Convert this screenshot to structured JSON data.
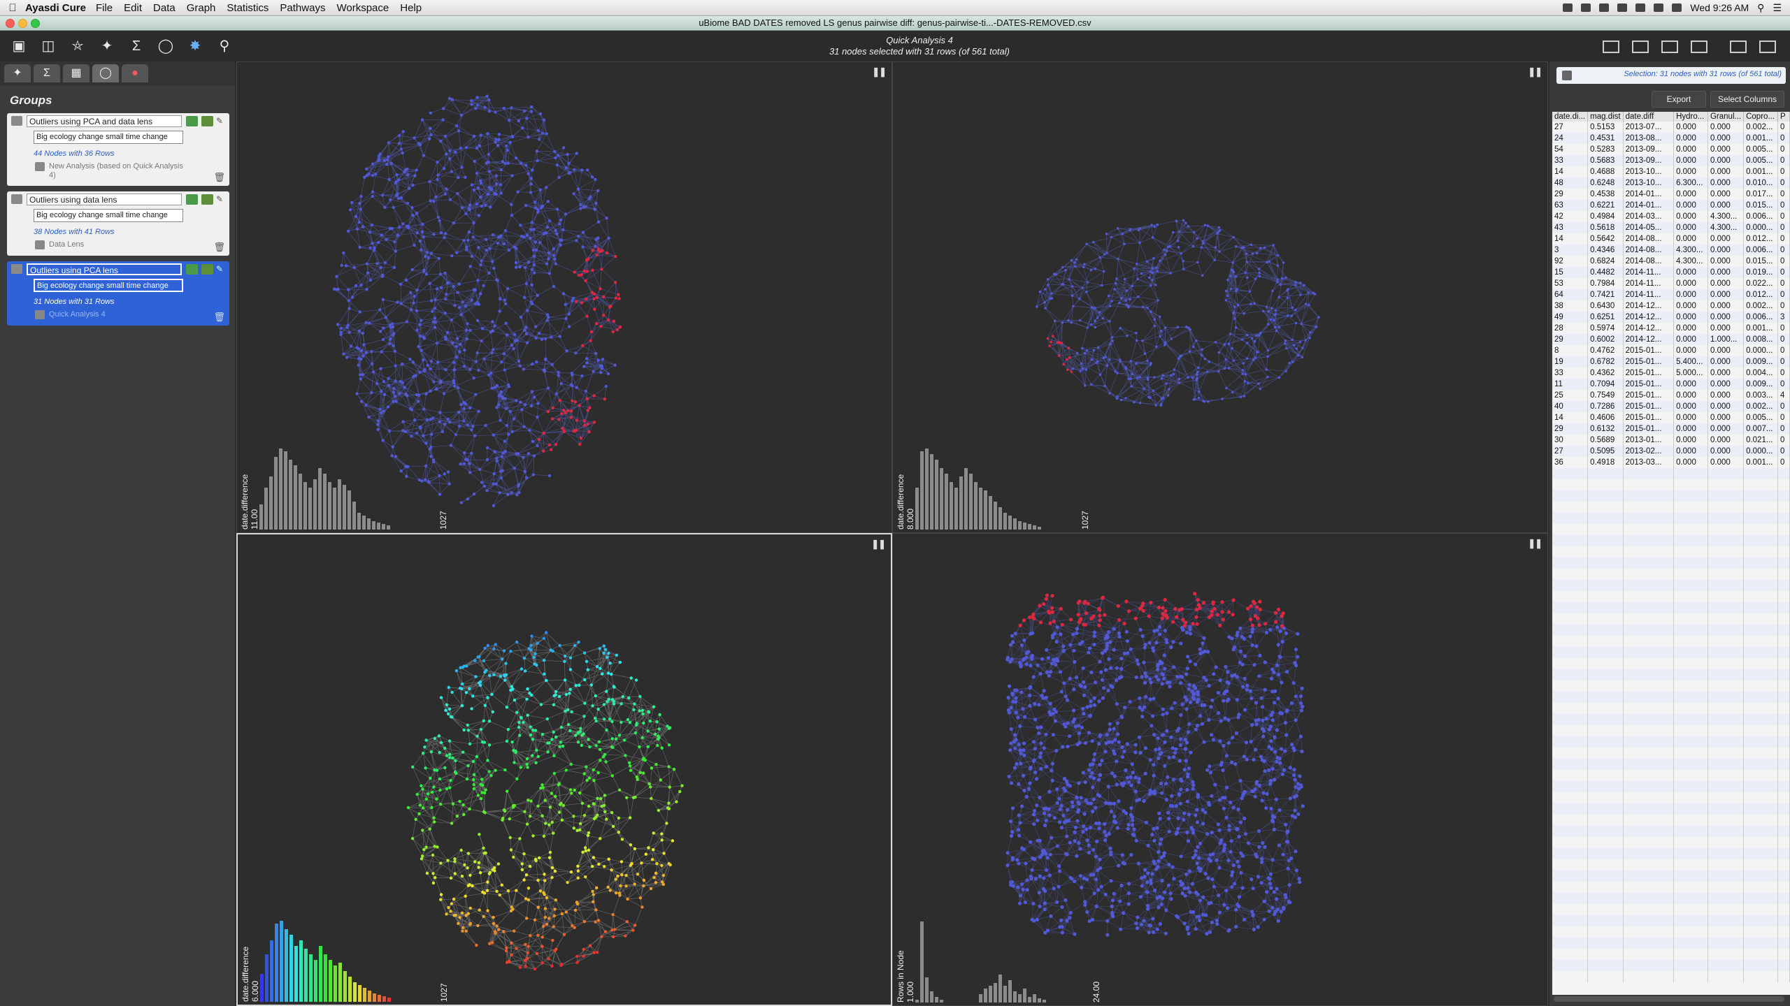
{
  "menubar": {
    "app": "Ayasdi Cure",
    "items": [
      "File",
      "Edit",
      "Data",
      "Graph",
      "Statistics",
      "Pathways",
      "Workspace",
      "Help"
    ],
    "clock": "Wed 9:26 AM"
  },
  "window": {
    "title": "uBiome BAD DATES removed LS genus pairwise diff: genus-pairwise-ti...-DATES-REMOVED.csv"
  },
  "toolbar": {
    "analysis_title": "Quick Analysis 4",
    "selection_summary": "31 nodes selected with 31 rows (of 561 total)",
    "icons": [
      "new-analysis-icon",
      "open-folder-icon",
      "database-icon",
      "network-add-icon",
      "sigma-add-icon",
      "lens-icon",
      "color-network-icon",
      "search-icon"
    ]
  },
  "left_panel": {
    "heading": "Groups",
    "tabs": [
      "network-tab-icon",
      "sigma-tab-icon",
      "table-tab-icon",
      "lens-tab-icon",
      "color-tab-icon"
    ],
    "groups": [
      {
        "name": "Outliers using PCA and data lens",
        "description": "Big ecology change small time change",
        "count": "44 Nodes with 36 Rows",
        "source": "New Analysis (based on Quick Analysis 4)"
      },
      {
        "name": "Outliers using data lens",
        "description": "Big ecology change small time change",
        "count": "38 Nodes with 41 Rows",
        "source": "Data Lens"
      },
      {
        "name": "Outliers using PCA lens",
        "description": "Big ecology change small time change",
        "count": "31 Nodes with 31 Rows",
        "source": "Quick Analysis 4"
      }
    ]
  },
  "quadrants": [
    {
      "hist_label": "date.difference",
      "hist_max": "11.00",
      "hist_count": "1027",
      "hist": [
        18,
        30,
        38,
        52,
        58,
        56,
        50,
        46,
        40,
        34,
        30,
        36,
        44,
        40,
        34,
        30,
        36,
        32,
        28,
        20,
        12,
        10,
        8,
        6,
        5,
        4,
        3
      ]
    },
    {
      "hist_label": "date.difference",
      "hist_max": "8.000",
      "hist_count": "1027",
      "hist": [
        30,
        56,
        58,
        54,
        50,
        44,
        40,
        34,
        30,
        38,
        44,
        40,
        34,
        30,
        28,
        24,
        20,
        16,
        12,
        10,
        8,
        6,
        5,
        4,
        3,
        2
      ]
    },
    {
      "hist_label": "date.difference",
      "hist_max": "6.000",
      "hist_count": "1027",
      "hist": [
        20,
        34,
        44,
        56,
        58,
        52,
        48,
        40,
        44,
        38,
        34,
        30,
        40,
        34,
        30,
        26,
        28,
        22,
        18,
        14,
        12,
        10,
        8,
        6,
        5,
        4,
        3
      ]
    },
    {
      "hist_label": "Rows in Node",
      "hist_max": "1.000",
      "hist_count": "24.00",
      "hist": [
        2,
        58,
        18,
        8,
        4,
        2,
        0,
        0,
        0,
        0,
        0,
        0,
        0,
        6,
        10,
        12,
        14,
        20,
        12,
        16,
        8,
        6,
        10,
        4,
        6,
        3,
        2
      ]
    }
  ],
  "colors": {
    "blue_node": "#5259d8",
    "red_node": "#e0273f",
    "selection": "#2e62d6"
  },
  "right_panel": {
    "selection_text": "Selection: 31 nodes with 31 rows (of 561 total)",
    "export_label": "Export",
    "select_columns_label": "Select Columns",
    "columns": [
      "date.di...",
      "mag.dist",
      "date.diff",
      "Hydro...",
      "Granul...",
      "Copro...",
      "P"
    ],
    "rows": [
      [
        "27",
        "0.5153",
        "2013-07...",
        "0.000",
        "0.000",
        "0.002...",
        "0"
      ],
      [
        "24",
        "0.4531",
        "2013-08...",
        "0.000",
        "0.000",
        "0.001...",
        "0"
      ],
      [
        "54",
        "0.5283",
        "2013-09...",
        "0.000",
        "0.000",
        "0.005...",
        "0"
      ],
      [
        "33",
        "0.5683",
        "2013-09...",
        "0.000",
        "0.000",
        "0.005...",
        "0"
      ],
      [
        "14",
        "0.4688",
        "2013-10...",
        "0.000",
        "0.000",
        "0.001...",
        "0"
      ],
      [
        "48",
        "0.6248",
        "2013-10...",
        "6.300...",
        "0.000",
        "0.010...",
        "0"
      ],
      [
        "29",
        "0.4538",
        "2014-01...",
        "0.000",
        "0.000",
        "0.017...",
        "0"
      ],
      [
        "63",
        "0.6221",
        "2014-01...",
        "0.000",
        "0.000",
        "0.015...",
        "0"
      ],
      [
        "42",
        "0.4984",
        "2014-03...",
        "0.000",
        "4.300...",
        "0.006...",
        "0"
      ],
      [
        "43",
        "0.5618",
        "2014-05...",
        "0.000",
        "4.300...",
        "0.000...",
        "0"
      ],
      [
        "14",
        "0.5642",
        "2014-08...",
        "0.000",
        "0.000",
        "0.012...",
        "0"
      ],
      [
        "3",
        "0.4346",
        "2014-08...",
        "4.300...",
        "0.000",
        "0.006...",
        "0"
      ],
      [
        "92",
        "0.6824",
        "2014-08...",
        "4.300...",
        "0.000",
        "0.015...",
        "0"
      ],
      [
        "15",
        "0.4482",
        "2014-11...",
        "0.000",
        "0.000",
        "0.019...",
        "0"
      ],
      [
        "53",
        "0.7984",
        "2014-11...",
        "0.000",
        "0.000",
        "0.022...",
        "0"
      ],
      [
        "64",
        "0.7421",
        "2014-11...",
        "0.000",
        "0.000",
        "0.012...",
        "0"
      ],
      [
        "38",
        "0.6430",
        "2014-12...",
        "0.000",
        "0.000",
        "0.002...",
        "0"
      ],
      [
        "49",
        "0.6251",
        "2014-12...",
        "0.000",
        "0.000",
        "0.006...",
        "3"
      ],
      [
        "28",
        "0.5974",
        "2014-12...",
        "0.000",
        "0.000",
        "0.001...",
        "0"
      ],
      [
        "29",
        "0.6002",
        "2014-12...",
        "0.000",
        "1.000...",
        "0.008...",
        "0"
      ],
      [
        "8",
        "0.4762",
        "2015-01...",
        "0.000",
        "0.000",
        "0.000...",
        "0"
      ],
      [
        "19",
        "0.6782",
        "2015-01...",
        "5.400...",
        "0.000",
        "0.009...",
        "0"
      ],
      [
        "33",
        "0.4362",
        "2015-01...",
        "5.000...",
        "0.000",
        "0.004...",
        "0"
      ],
      [
        "11",
        "0.7094",
        "2015-01...",
        "0.000",
        "0.000",
        "0.009...",
        "0"
      ],
      [
        "25",
        "0.7549",
        "2015-01...",
        "0.000",
        "0.000",
        "0.003...",
        "4"
      ],
      [
        "40",
        "0.7286",
        "2015-01...",
        "0.000",
        "0.000",
        "0.002...",
        "0"
      ],
      [
        "14",
        "0.4606",
        "2015-01...",
        "0.000",
        "0.000",
        "0.005...",
        "0"
      ],
      [
        "29",
        "0.6132",
        "2015-01...",
        "0.000",
        "0.000",
        "0.007...",
        "0"
      ],
      [
        "30",
        "0.5689",
        "2013-01...",
        "0.000",
        "0.000",
        "0.021...",
        "0"
      ],
      [
        "27",
        "0.5095",
        "2013-02...",
        "0.000",
        "0.000",
        "0.000...",
        "0"
      ],
      [
        "36",
        "0.4918",
        "2013-03...",
        "0.000",
        "0.000",
        "0.001...",
        "0"
      ]
    ]
  }
}
